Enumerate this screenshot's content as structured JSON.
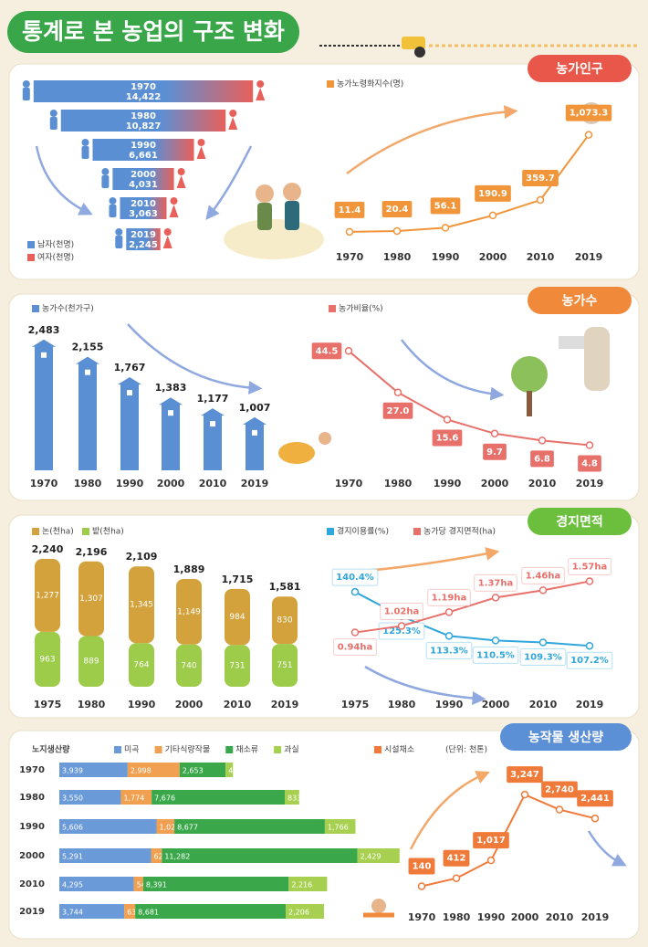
{
  "title": "통계로 본 농업의 구조 변화",
  "panels": [
    {
      "title": "농가인구"
    },
    {
      "title": "농가수"
    },
    {
      "title": "경지면적"
    },
    {
      "title": "농작물 생산량"
    }
  ],
  "chart_data": [
    {
      "type": "bar",
      "orientation": "horizontal",
      "categories": [
        "1970",
        "1980",
        "1990",
        "2000",
        "2010",
        "2019"
      ],
      "values": [
        14422,
        10827,
        6661,
        4031,
        3063,
        2245
      ],
      "value_labels": [
        "14,422",
        "10,827",
        "6,661",
        "4,031",
        "3,063",
        "2,245"
      ],
      "xlim": [
        0,
        15000
      ],
      "legend": [
        {
          "name": "남자(천명)",
          "color": "#5b8fd4"
        },
        {
          "name": "여자(천명)",
          "color": "#e8605a"
        }
      ]
    },
    {
      "type": "line",
      "categories": [
        "1970",
        "1980",
        "1990",
        "2000",
        "2010",
        "2019"
      ],
      "series": [
        {
          "name": "농가노령화지수(명)",
          "color": "#f0953a",
          "values": [
            11.4,
            20.4,
            56.1,
            190.9,
            359.7,
            1073.3
          ],
          "value_labels": [
            "11.4",
            "20.4",
            "56.1",
            "190.9",
            "359.7",
            "1,073.3"
          ]
        }
      ],
      "ylim": [
        0,
        1150
      ]
    },
    {
      "type": "bar",
      "categories": [
        "1970",
        "1980",
        "1990",
        "2000",
        "2010",
        "2019"
      ],
      "series": [
        {
          "name": "농가수(천가구)",
          "color": "#5b8fd4",
          "values": [
            2483,
            2155,
            1767,
            1383,
            1177,
            1007
          ],
          "value_labels": [
            "2,483",
            "2,155",
            "1,767",
            "1,383",
            "1,177",
            "1,007"
          ]
        }
      ],
      "ylim": [
        0,
        2600
      ]
    },
    {
      "type": "line",
      "categories": [
        "1970",
        "1980",
        "1990",
        "2000",
        "2010",
        "2019"
      ],
      "series": [
        {
          "name": "농가비율(%)",
          "color": "#e8706a",
          "values": [
            44.5,
            27.0,
            15.6,
            9.7,
            6.8,
            4.8
          ],
          "value_labels": [
            "44.5",
            "27.0",
            "15.6",
            "9.7",
            "6.8",
            "4.8"
          ]
        }
      ],
      "ylim": [
        0,
        50
      ]
    },
    {
      "type": "bar",
      "stacked": true,
      "categories": [
        "1975",
        "1980",
        "1990",
        "2000",
        "2010",
        "2019"
      ],
      "series": [
        {
          "name": "밭(천ha)",
          "color": "#9ccc4a",
          "values": [
            963,
            889,
            764,
            740,
            731,
            751
          ]
        },
        {
          "name": "논(천ha)",
          "color": "#d4a23c",
          "values": [
            1277,
            1307,
            1345,
            1149,
            984,
            830
          ],
          "value_labels": [
            "1,277",
            "1,307",
            "1,345",
            "1,149",
            "984",
            "830"
          ]
        }
      ],
      "total_labels": [
        "2,240",
        "2,196",
        "2,109",
        "1,889",
        "1,715",
        "1,581"
      ],
      "legend_order": [
        1,
        0
      ],
      "ylim": [
        0,
        2400
      ]
    },
    {
      "type": "line",
      "categories": [
        "1975",
        "1980",
        "1990",
        "2000",
        "2010",
        "2019"
      ],
      "series": [
        {
          "name": "경지이용률(%)",
          "color": "#2fa6dc",
          "values": [
            140.4,
            125.3,
            113.3,
            110.5,
            109.3,
            107.2
          ],
          "value_labels": [
            "140.4%",
            "125.3%",
            "113.3%",
            "110.5%",
            "109.3%",
            "107.2%"
          ]
        },
        {
          "name": "농가당 경지면적(ha)",
          "color": "#e8706a",
          "axis": "y2",
          "values": [
            0.94,
            1.02,
            1.19,
            1.37,
            1.46,
            1.57
          ],
          "value_labels": [
            "0.94ha",
            "1.02ha",
            "1.19ha",
            "1.37ha",
            "1.46ha",
            "1.57ha"
          ]
        }
      ],
      "ylim": [
        100,
        145
      ],
      "y2lim": [
        0.8,
        1.7
      ]
    },
    {
      "type": "bar",
      "orientation": "horizontal",
      "stacked": true,
      "label": "노지생산량",
      "unit": "(단위: 천톤)",
      "categories": [
        "1970",
        "1980",
        "1990",
        "2000",
        "2010",
        "2019"
      ],
      "series": [
        {
          "name": "미곡",
          "color": "#6a9ad8",
          "values": [
            3939,
            3550,
            5606,
            5291,
            4295,
            3744
          ],
          "value_labels": [
            "3,939",
            "3,550",
            "5,606",
            "5,291",
            "4,295",
            "3,744"
          ]
        },
        {
          "name": "기타식량작물",
          "color": "#f0a050",
          "values": [
            2998,
            1774,
            1029,
            621,
            541,
            630
          ],
          "value_labels": [
            "2,998",
            "1,774",
            "1,029",
            "621",
            "541",
            "630"
          ]
        },
        {
          "name": "채소류",
          "color": "#3aa84a",
          "values": [
            2653,
            7676,
            8677,
            11282,
            8391,
            8681
          ],
          "value_labels": [
            "2,653",
            "7,676",
            "8,677",
            "11,282",
            "8,391",
            "8,681"
          ]
        },
        {
          "name": "과실",
          "color": "#a8d050",
          "values": [
            423,
            833,
            1766,
            2429,
            2216,
            2206
          ],
          "value_labels": [
            "423",
            "833",
            "1,766",
            "2,429",
            "2,216",
            "2,206"
          ]
        }
      ],
      "xlim": [
        0,
        20000
      ]
    },
    {
      "type": "line",
      "categories": [
        "1970",
        "1980",
        "1990",
        "2000",
        "2010",
        "2019"
      ],
      "series": [
        {
          "name": "시설채소",
          "color": "#f07a3a",
          "values": [
            140,
            412,
            1017,
            3247,
            2740,
            2441
          ],
          "value_labels": [
            "140",
            "412",
            "1,017",
            "3,247",
            "2,740",
            "2,441"
          ]
        }
      ],
      "ylim": [
        0,
        3500
      ]
    }
  ]
}
